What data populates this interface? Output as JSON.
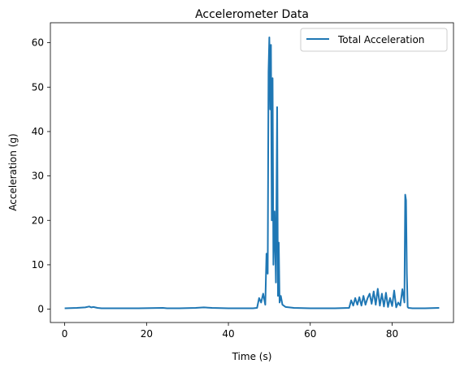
{
  "chart_data": {
    "type": "line",
    "title": "Accelerometer Data",
    "xlabel": "Time (s)",
    "ylabel": "Acceleration (g)",
    "xlim": [
      -3.5,
      95
    ],
    "ylim": [
      -3,
      64.5
    ],
    "xticks": [
      0,
      20,
      40,
      60,
      80
    ],
    "yticks": [
      0,
      10,
      20,
      30,
      40,
      50,
      60
    ],
    "grid": false,
    "legend_position": "top-right",
    "series": [
      {
        "name": "Total Acceleration",
        "color": "#1f77b4",
        "x": [
          0,
          3,
          5,
          6,
          6.5,
          7,
          8,
          9,
          12,
          18,
          24,
          25,
          28,
          32,
          34,
          36,
          40,
          46,
          47,
          47.5,
          48,
          48.5,
          49,
          49.3,
          49.6,
          49.8,
          50,
          50.2,
          50.4,
          50.6,
          50.8,
          51,
          51.3,
          51.6,
          51.9,
          52.1,
          52.3,
          52.5,
          52.8,
          53.2,
          54,
          56,
          60,
          66,
          69.5,
          70,
          70.5,
          71,
          71.5,
          72,
          72.5,
          73,
          73.5,
          74,
          74.5,
          75,
          75.5,
          76,
          76.5,
          77,
          77.5,
          78,
          78.5,
          79,
          79.5,
          80,
          80.5,
          81,
          81.5,
          82,
          82.5,
          83,
          83.2,
          83.4,
          83.6,
          83.8,
          84,
          85,
          88,
          91.5
        ],
        "values": [
          0.2,
          0.3,
          0.4,
          0.6,
          0.4,
          0.5,
          0.3,
          0.2,
          0.2,
          0.2,
          0.3,
          0.2,
          0.2,
          0.3,
          0.4,
          0.3,
          0.2,
          0.2,
          0.3,
          2.5,
          1.5,
          3.5,
          1.0,
          12.5,
          8.0,
          53.5,
          61.2,
          45.0,
          59.5,
          20.0,
          52.0,
          10.0,
          22.0,
          6.0,
          45.5,
          3.0,
          15.0,
          1.5,
          3.0,
          1.0,
          0.5,
          0.3,
          0.2,
          0.2,
          0.3,
          2.0,
          0.8,
          2.5,
          1.0,
          2.7,
          0.8,
          3.0,
          1.0,
          2.5,
          3.5,
          1.2,
          4.0,
          1.0,
          4.6,
          0.8,
          3.5,
          0.6,
          3.7,
          0.5,
          2.5,
          0.7,
          4.2,
          0.4,
          1.5,
          0.8,
          4.5,
          1.5,
          25.8,
          24.5,
          8.0,
          0.5,
          0.3,
          0.2,
          0.2,
          0.3
        ]
      }
    ]
  }
}
